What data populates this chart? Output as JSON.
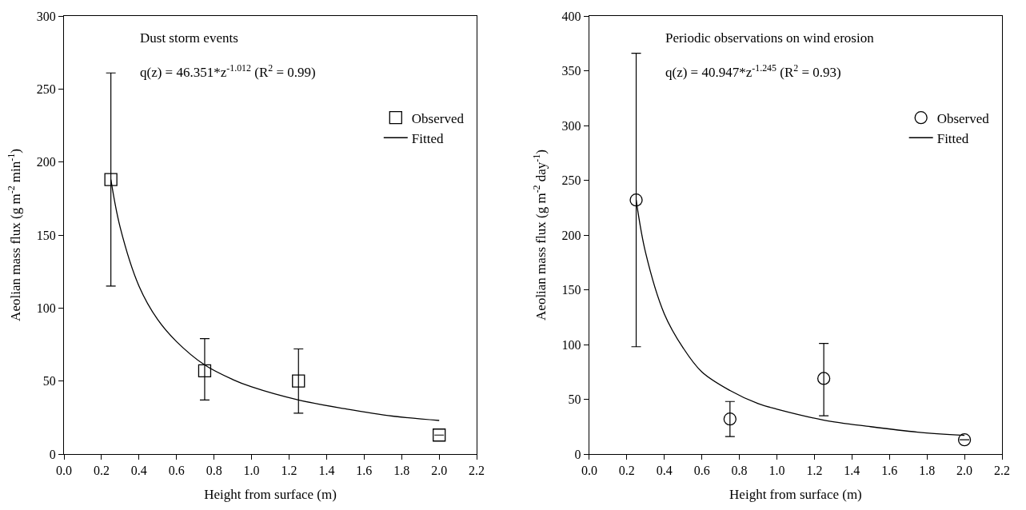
{
  "chart_data": [
    {
      "type": "scatter",
      "xlabel": "Height from surface (m)",
      "ylabel": "Aeolian mass flux (g m$^{-2}$ min$^{-1}$)",
      "xlim": [
        0,
        2.2
      ],
      "xticks": [
        {
          "value": 0,
          "label": "0.0"
        },
        {
          "value": 0.2,
          "label": "0.2"
        },
        {
          "value": 0.4,
          "label": "0.4"
        },
        {
          "value": 0.6,
          "label": "0.6"
        },
        {
          "value": 0.8,
          "label": "0.8"
        },
        {
          "value": 1.0,
          "label": "1.0"
        },
        {
          "value": 1.2,
          "label": "1.2"
        },
        {
          "value": 1.4,
          "label": "1.4"
        },
        {
          "value": 1.6,
          "label": "1.6"
        },
        {
          "value": 1.8,
          "label": "1.8"
        },
        {
          "value": 2.0,
          "label": "2.0"
        },
        {
          "value": 2.2,
          "label": "2.2"
        }
      ],
      "ylim": [
        0,
        300
      ],
      "yticks": [
        0,
        50,
        100,
        150,
        200,
        250,
        300
      ],
      "legend": "top right",
      "annotations": [
        "Dust storm events",
        "q(z) = 46.351*z$^{-1.012}$ (R$^{2}$ = 0.99)"
      ],
      "series": [
        {
          "name": "Observed",
          "marker": "square",
          "color": "#000000",
          "x": [
            0.25,
            0.75,
            1.25,
            2.0
          ],
          "values": [
            188,
            57,
            50,
            13
          ],
          "errors": [
            [
              115,
              261
            ],
            [
              37,
              79
            ],
            [
              28,
              72
            ],
            null
          ]
        },
        {
          "name": "Fitted",
          "type": "line",
          "marker": "none",
          "line_style": "solid",
          "color": "#000000",
          "x": [
            0.25,
            0.3,
            0.4,
            0.5,
            0.6,
            0.75,
            0.9,
            1.0,
            1.25,
            1.5,
            1.75,
            2.0
          ],
          "values": [
            188,
            155,
            115,
            92,
            77,
            61,
            51,
            46,
            37,
            31,
            26,
            23
          ]
        }
      ]
    },
    {
      "type": "scatter",
      "xlabel": "Height from surface (m)",
      "ylabel": "Aeolian mass flux (g m$^{-2}$ day$^{-1}$)",
      "xlim": [
        0,
        2.2
      ],
      "xticks": [
        {
          "value": 0,
          "label": "0.0"
        },
        {
          "value": 0.2,
          "label": "0.2"
        },
        {
          "value": 0.4,
          "label": "0.4"
        },
        {
          "value": 0.6,
          "label": "0.6"
        },
        {
          "value": 0.8,
          "label": "0.8"
        },
        {
          "value": 1.0,
          "label": "1.0"
        },
        {
          "value": 1.2,
          "label": "1.2"
        },
        {
          "value": 1.4,
          "label": "1.4"
        },
        {
          "value": 1.6,
          "label": "1.6"
        },
        {
          "value": 1.8,
          "label": "1.8"
        },
        {
          "value": 2.0,
          "label": "2.0"
        },
        {
          "value": 2.2,
          "label": "2.2"
        }
      ],
      "ylim": [
        0,
        400
      ],
      "yticks": [
        0,
        50,
        100,
        150,
        200,
        250,
        300,
        350,
        400
      ],
      "legend": "top right",
      "annotations": [
        "Periodic observations on wind erosion",
        "q(z) = 40.947*z$^{-1.245}$ (R$^{2}$ = 0.93)"
      ],
      "series": [
        {
          "name": "Observed",
          "marker": "circle",
          "color": "#000000",
          "x": [
            0.25,
            0.75,
            1.25,
            2.0
          ],
          "values": [
            232,
            32,
            69,
            13
          ],
          "errors": [
            [
              98,
              366
            ],
            [
              16,
              48
            ],
            [
              35,
              101
            ],
            null
          ]
        },
        {
          "name": "Fitted",
          "type": "line",
          "marker": "none",
          "line_style": "solid",
          "color": "#000000",
          "x": [
            0.25,
            0.3,
            0.4,
            0.5,
            0.6,
            0.75,
            0.9,
            1.0,
            1.25,
            1.5,
            1.75,
            2.0
          ],
          "values": [
            232,
            184,
            128,
            97,
            75,
            58,
            46,
            41,
            31,
            25,
            20,
            17
          ]
        }
      ]
    }
  ]
}
